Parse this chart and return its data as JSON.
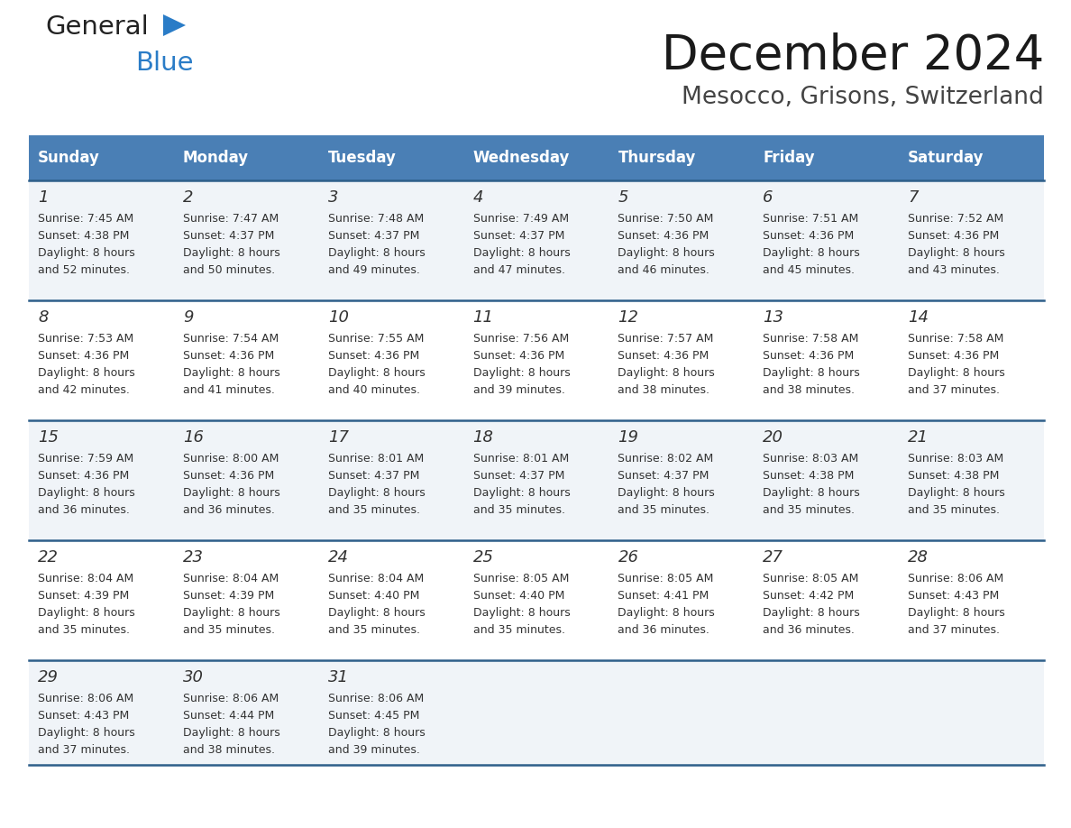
{
  "title": "December 2024",
  "subtitle": "Mesocco, Grisons, Switzerland",
  "header_color": "#4a7fb5",
  "header_text_color": "#ffffff",
  "days_of_week": [
    "Sunday",
    "Monday",
    "Tuesday",
    "Wednesday",
    "Thursday",
    "Friday",
    "Saturday"
  ],
  "bg_color": "#ffffff",
  "cell_bg_even": "#f0f4f8",
  "cell_bg_odd": "#ffffff",
  "row_line_color": "#2e5f8a",
  "text_color": "#333333",
  "calendar": [
    [
      {
        "day": 1,
        "sunrise": "7:45 AM",
        "sunset": "4:38 PM",
        "daylight": "8 hours and 52 minutes"
      },
      {
        "day": 2,
        "sunrise": "7:47 AM",
        "sunset": "4:37 PM",
        "daylight": "8 hours and 50 minutes"
      },
      {
        "day": 3,
        "sunrise": "7:48 AM",
        "sunset": "4:37 PM",
        "daylight": "8 hours and 49 minutes"
      },
      {
        "day": 4,
        "sunrise": "7:49 AM",
        "sunset": "4:37 PM",
        "daylight": "8 hours and 47 minutes"
      },
      {
        "day": 5,
        "sunrise": "7:50 AM",
        "sunset": "4:36 PM",
        "daylight": "8 hours and 46 minutes"
      },
      {
        "day": 6,
        "sunrise": "7:51 AM",
        "sunset": "4:36 PM",
        "daylight": "8 hours and 45 minutes"
      },
      {
        "day": 7,
        "sunrise": "7:52 AM",
        "sunset": "4:36 PM",
        "daylight": "8 hours and 43 minutes"
      }
    ],
    [
      {
        "day": 8,
        "sunrise": "7:53 AM",
        "sunset": "4:36 PM",
        "daylight": "8 hours and 42 minutes"
      },
      {
        "day": 9,
        "sunrise": "7:54 AM",
        "sunset": "4:36 PM",
        "daylight": "8 hours and 41 minutes"
      },
      {
        "day": 10,
        "sunrise": "7:55 AM",
        "sunset": "4:36 PM",
        "daylight": "8 hours and 40 minutes"
      },
      {
        "day": 11,
        "sunrise": "7:56 AM",
        "sunset": "4:36 PM",
        "daylight": "8 hours and 39 minutes"
      },
      {
        "day": 12,
        "sunrise": "7:57 AM",
        "sunset": "4:36 PM",
        "daylight": "8 hours and 38 minutes"
      },
      {
        "day": 13,
        "sunrise": "7:58 AM",
        "sunset": "4:36 PM",
        "daylight": "8 hours and 38 minutes"
      },
      {
        "day": 14,
        "sunrise": "7:58 AM",
        "sunset": "4:36 PM",
        "daylight": "8 hours and 37 minutes"
      }
    ],
    [
      {
        "day": 15,
        "sunrise": "7:59 AM",
        "sunset": "4:36 PM",
        "daylight": "8 hours and 36 minutes"
      },
      {
        "day": 16,
        "sunrise": "8:00 AM",
        "sunset": "4:36 PM",
        "daylight": "8 hours and 36 minutes"
      },
      {
        "day": 17,
        "sunrise": "8:01 AM",
        "sunset": "4:37 PM",
        "daylight": "8 hours and 35 minutes"
      },
      {
        "day": 18,
        "sunrise": "8:01 AM",
        "sunset": "4:37 PM",
        "daylight": "8 hours and 35 minutes"
      },
      {
        "day": 19,
        "sunrise": "8:02 AM",
        "sunset": "4:37 PM",
        "daylight": "8 hours and 35 minutes"
      },
      {
        "day": 20,
        "sunrise": "8:03 AM",
        "sunset": "4:38 PM",
        "daylight": "8 hours and 35 minutes"
      },
      {
        "day": 21,
        "sunrise": "8:03 AM",
        "sunset": "4:38 PM",
        "daylight": "8 hours and 35 minutes"
      }
    ],
    [
      {
        "day": 22,
        "sunrise": "8:04 AM",
        "sunset": "4:39 PM",
        "daylight": "8 hours and 35 minutes"
      },
      {
        "day": 23,
        "sunrise": "8:04 AM",
        "sunset": "4:39 PM",
        "daylight": "8 hours and 35 minutes"
      },
      {
        "day": 24,
        "sunrise": "8:04 AM",
        "sunset": "4:40 PM",
        "daylight": "8 hours and 35 minutes"
      },
      {
        "day": 25,
        "sunrise": "8:05 AM",
        "sunset": "4:40 PM",
        "daylight": "8 hours and 35 minutes"
      },
      {
        "day": 26,
        "sunrise": "8:05 AM",
        "sunset": "4:41 PM",
        "daylight": "8 hours and 36 minutes"
      },
      {
        "day": 27,
        "sunrise": "8:05 AM",
        "sunset": "4:42 PM",
        "daylight": "8 hours and 36 minutes"
      },
      {
        "day": 28,
        "sunrise": "8:06 AM",
        "sunset": "4:43 PM",
        "daylight": "8 hours and 37 minutes"
      }
    ],
    [
      {
        "day": 29,
        "sunrise": "8:06 AM",
        "sunset": "4:43 PM",
        "daylight": "8 hours and 37 minutes"
      },
      {
        "day": 30,
        "sunrise": "8:06 AM",
        "sunset": "4:44 PM",
        "daylight": "8 hours and 38 minutes"
      },
      {
        "day": 31,
        "sunrise": "8:06 AM",
        "sunset": "4:45 PM",
        "daylight": "8 hours and 39 minutes"
      },
      null,
      null,
      null,
      null
    ]
  ],
  "logo_text1": "General",
  "logo_text2": "Blue",
  "logo_color1": "#222222",
  "logo_color2": "#2a7cc7",
  "logo_triangle_color": "#2a7cc7"
}
